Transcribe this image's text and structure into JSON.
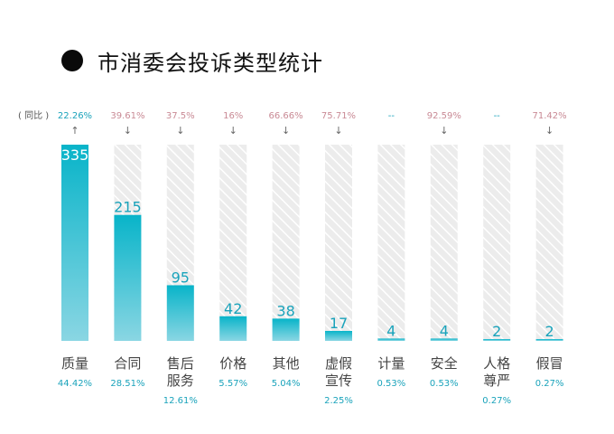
{
  "title": "市消委会投诉类型统计",
  "comparison_label": "( 同比 )",
  "colors": {
    "bar_top": "#08b4c9",
    "bar_bottom": "#8ad6e3",
    "track": "#e6e6e6",
    "value_in_bar": "#ffffff",
    "value_text": "#1aa3bb",
    "pct_up": "#1aa3bb",
    "pct_down": "#c98a95",
    "label": "#444444",
    "share": "#1aa3bb"
  },
  "chart_data": {
    "type": "bar",
    "title": "市消委会投诉类型统计",
    "ylim": [
      0,
      335
    ],
    "categories": [
      {
        "lines": [
          "质量"
        ],
        "value": 335,
        "share": "44.42%",
        "yoy": "22.26%",
        "arrow": "↑",
        "trend": "up"
      },
      {
        "lines": [
          "合同"
        ],
        "value": 215,
        "share": "28.51%",
        "yoy": "39.61%",
        "arrow": "↓",
        "trend": "down"
      },
      {
        "lines": [
          "售后",
          "服务"
        ],
        "value": 95,
        "share": "12.61%",
        "yoy": "37.5%",
        "arrow": "↓",
        "trend": "down"
      },
      {
        "lines": [
          "价格"
        ],
        "value": 42,
        "share": "5.57%",
        "yoy": "16%",
        "arrow": "↓",
        "trend": "down"
      },
      {
        "lines": [
          "其他"
        ],
        "value": 38,
        "share": "5.04%",
        "yoy": "66.66%",
        "arrow": "↓",
        "trend": "down"
      },
      {
        "lines": [
          "虚假",
          "宣传"
        ],
        "value": 17,
        "share": "2.25%",
        "yoy": "75.71%",
        "arrow": "↓",
        "trend": "down"
      },
      {
        "lines": [
          "计量"
        ],
        "value": 4,
        "share": "0.53%",
        "yoy": "--",
        "arrow": "",
        "trend": "none"
      },
      {
        "lines": [
          "安全"
        ],
        "value": 4,
        "share": "0.53%",
        "yoy": "92.59%",
        "arrow": "↓",
        "trend": "down"
      },
      {
        "lines": [
          "人格",
          "尊严"
        ],
        "value": 2,
        "share": "0.27%",
        "yoy": "--",
        "arrow": "",
        "trend": "none"
      },
      {
        "lines": [
          "假冒"
        ],
        "value": 2,
        "share": "0.27%",
        "yoy": "71.42%",
        "arrow": "↓",
        "trend": "down"
      }
    ]
  }
}
